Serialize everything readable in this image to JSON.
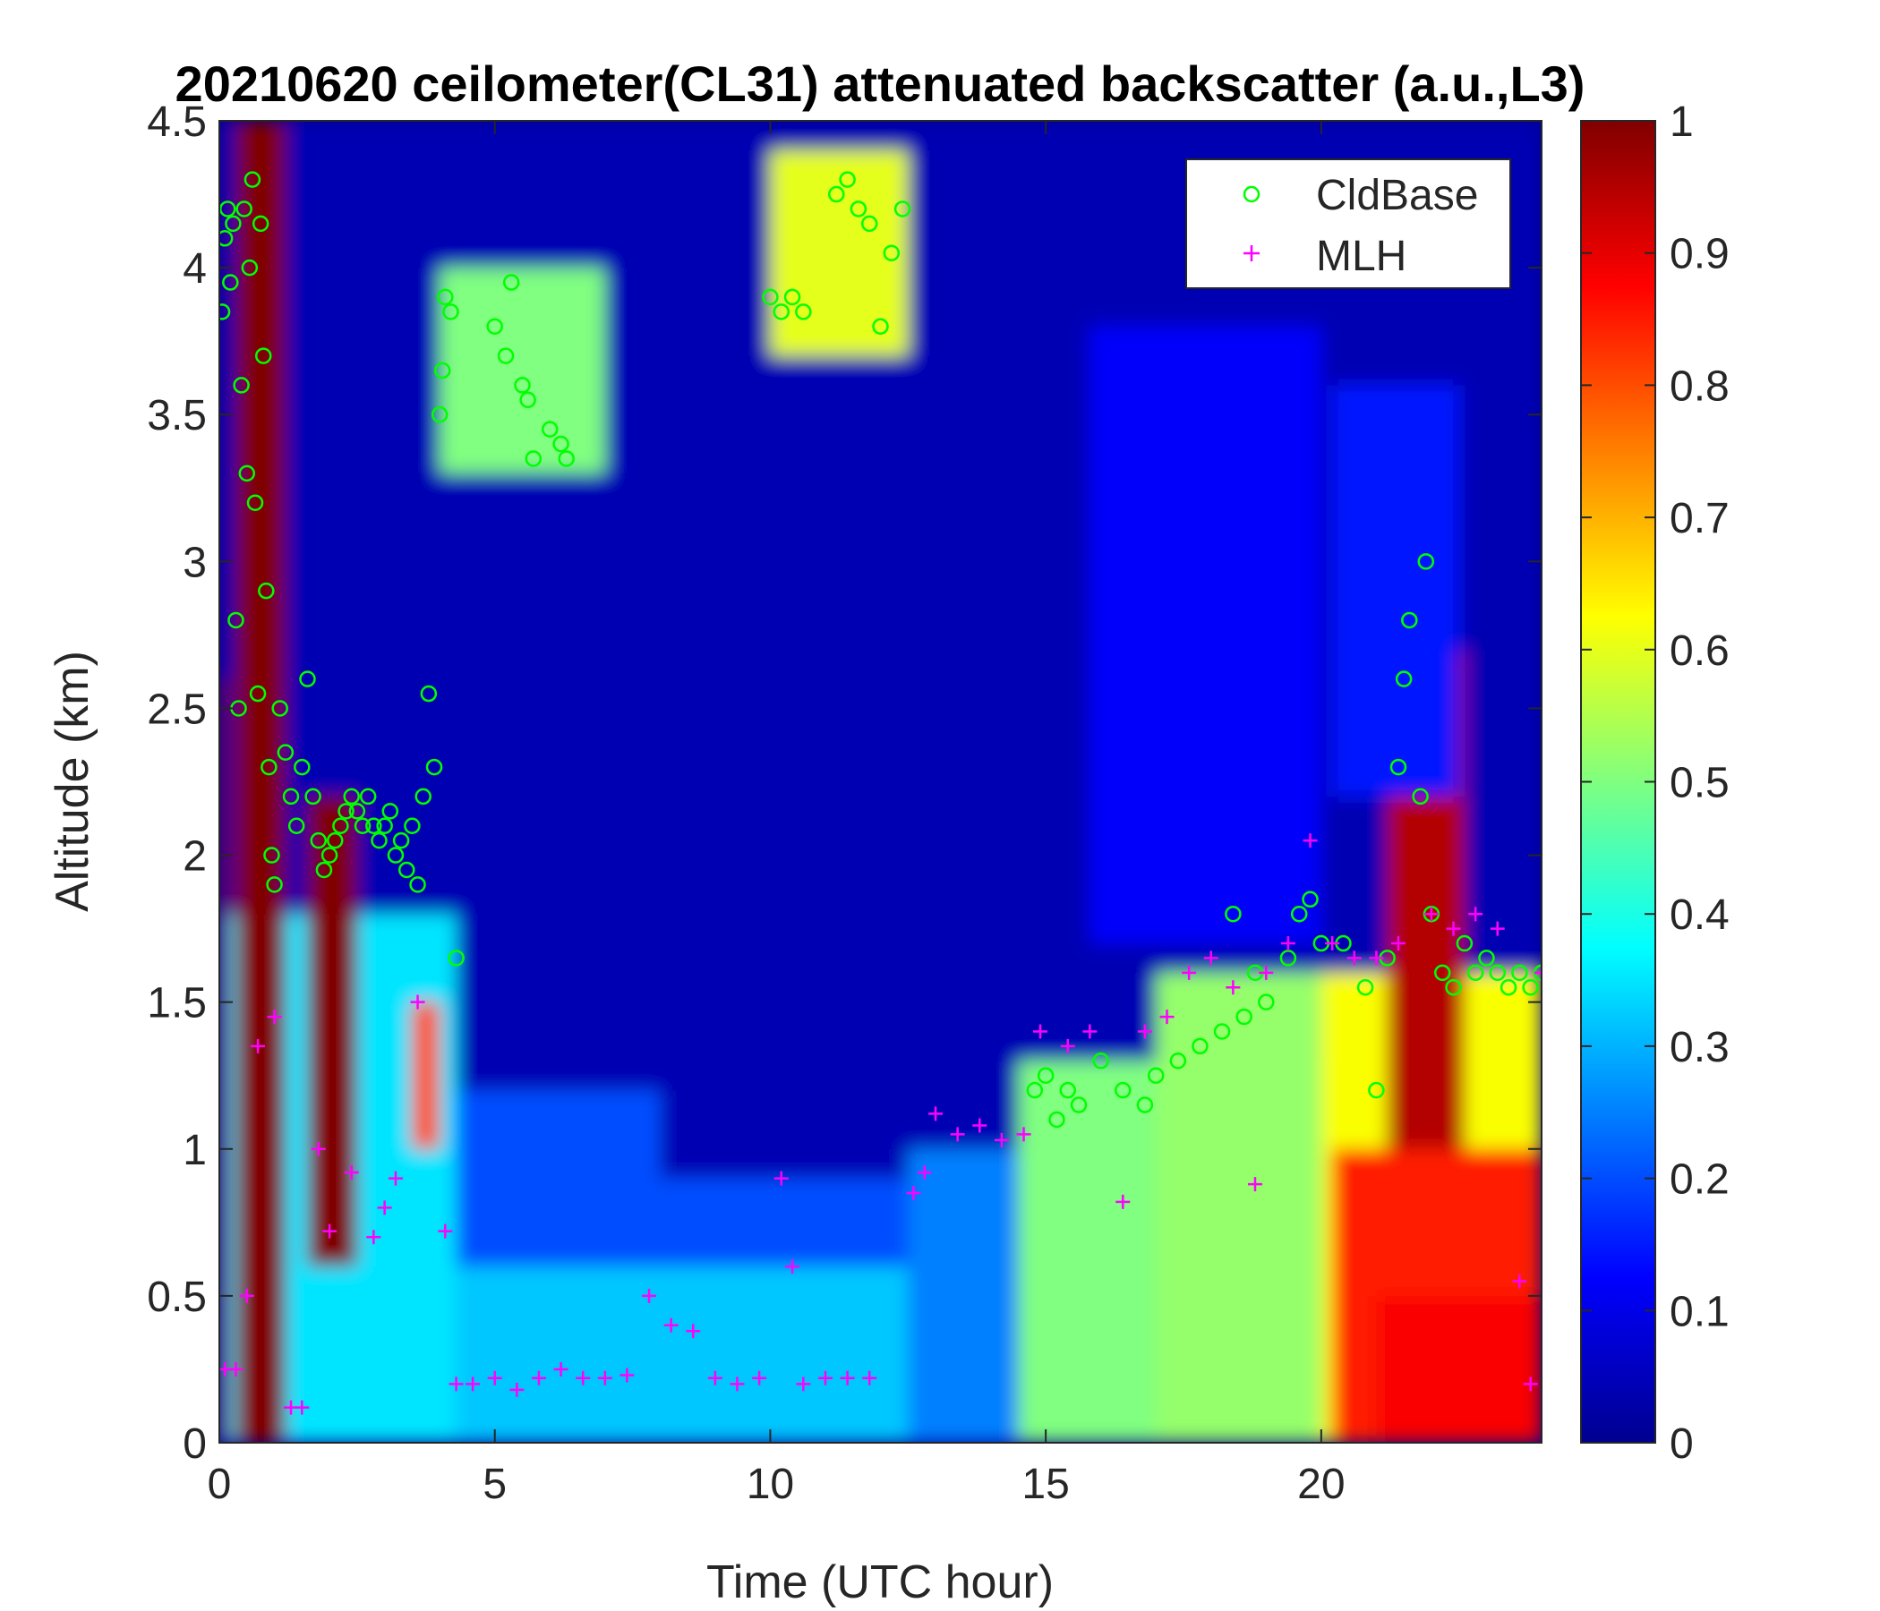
{
  "chart_data": {
    "type": "heatmap",
    "title": "20210620 ceilometer(CL31) attenuated backscatter (a.u.,L3)",
    "xlabel": "Time (UTC hour)",
    "ylabel": "Altitude (km)",
    "xlim": [
      0,
      24
    ],
    "ylim": [
      0,
      4.5
    ],
    "xticks": [
      0,
      5,
      10,
      15,
      20
    ],
    "yticks": [
      0,
      0.5,
      1,
      1.5,
      2,
      2.5,
      3,
      3.5,
      4,
      4.5
    ],
    "colorbar": {
      "range": [
        0,
        1
      ],
      "ticks": [
        0,
        0.1,
        0.2,
        0.3,
        0.4,
        0.5,
        0.6,
        0.7,
        0.8,
        0.9,
        1
      ],
      "colormap": "jet"
    },
    "legend": {
      "position": "top-right",
      "entries": [
        {
          "name": "CldBase",
          "marker": "circle",
          "color": "#00ff00"
        },
        {
          "name": "MLH",
          "marker": "plus",
          "color": "#ff00ff"
        }
      ]
    },
    "backscatter_regions": [
      {
        "x0": 0,
        "x1": 24,
        "y0": 0,
        "y1": 4.5,
        "value": 0.04
      },
      {
        "x0": 0,
        "x1": 4.3,
        "y0": 0,
        "y1": 1.8,
        "value": 0.35
      },
      {
        "x0": 4.3,
        "x1": 8,
        "y0": 0,
        "y1": 1.2,
        "value": 0.2
      },
      {
        "x0": 8,
        "x1": 12.5,
        "y0": 0,
        "y1": 0.9,
        "value": 0.2
      },
      {
        "x0": 12.5,
        "x1": 14.5,
        "y0": 0,
        "y1": 1.0,
        "value": 0.25
      },
      {
        "x0": 4.3,
        "x1": 12.5,
        "y0": 0,
        "y1": 0.6,
        "value": 0.32
      },
      {
        "x0": 14.5,
        "x1": 20,
        "y0": 0,
        "y1": 1.3,
        "value": 0.5
      },
      {
        "x0": 17,
        "x1": 20,
        "y0": 0,
        "y1": 1.6,
        "value": 0.52
      },
      {
        "x0": 20,
        "x1": 24,
        "y0": 0,
        "y1": 1.6,
        "value": 0.62
      },
      {
        "x0": 20.2,
        "x1": 24,
        "y0": 0,
        "y1": 1.0,
        "value": 0.85
      },
      {
        "x0": 21,
        "x1": 24,
        "y0": 0,
        "y1": 0.5,
        "value": 0.88
      },
      {
        "x0": 0,
        "x1": 0.15,
        "y0": 0,
        "y1": 2.6,
        "value": 1.0
      },
      {
        "x0": 0.3,
        "x1": 1.2,
        "y0": 0,
        "y1": 4.5,
        "value": 1.0
      },
      {
        "x0": 1.6,
        "x1": 2.5,
        "y0": 0.6,
        "y1": 2.2,
        "value": 1.0
      },
      {
        "x0": 3.5,
        "x1": 4.0,
        "y0": 1.0,
        "y1": 1.5,
        "value": 0.8
      },
      {
        "x0": 21.2,
        "x1": 22.6,
        "y0": 1.0,
        "y1": 2.7,
        "value": 0.95
      },
      {
        "x0": 15.8,
        "x1": 20,
        "y0": 1.7,
        "y1": 3.8,
        "value": 0.12
      },
      {
        "x0": 20.2,
        "x1": 22.5,
        "y0": 2.2,
        "y1": 3.6,
        "value": 0.15
      },
      {
        "x0": 10,
        "x1": 12.5,
        "y0": 3.7,
        "y1": 4.4,
        "value": 0.6
      },
      {
        "x0": 4,
        "x1": 7,
        "y0": 3.3,
        "y1": 4.0,
        "value": 0.5
      }
    ],
    "CldBase": [
      [
        0.05,
        3.85
      ],
      [
        0.1,
        4.1
      ],
      [
        0.15,
        4.2
      ],
      [
        0.2,
        3.95
      ],
      [
        0.25,
        4.15
      ],
      [
        0.3,
        2.8
      ],
      [
        0.35,
        2.5
      ],
      [
        0.4,
        3.6
      ],
      [
        0.45,
        4.2
      ],
      [
        0.5,
        3.3
      ],
      [
        0.55,
        4.0
      ],
      [
        0.6,
        4.3
      ],
      [
        0.65,
        3.2
      ],
      [
        0.7,
        2.55
      ],
      [
        0.75,
        4.15
      ],
      [
        0.8,
        3.7
      ],
      [
        0.85,
        2.9
      ],
      [
        0.9,
        2.3
      ],
      [
        0.95,
        2.0
      ],
      [
        1.0,
        1.9
      ],
      [
        1.1,
        2.5
      ],
      [
        1.2,
        2.35
      ],
      [
        1.3,
        2.2
      ],
      [
        1.4,
        2.1
      ],
      [
        1.5,
        2.3
      ],
      [
        1.6,
        2.6
      ],
      [
        1.7,
        2.2
      ],
      [
        1.8,
        2.05
      ],
      [
        1.9,
        1.95
      ],
      [
        2.0,
        2.0
      ],
      [
        2.1,
        2.05
      ],
      [
        2.2,
        2.1
      ],
      [
        2.3,
        2.15
      ],
      [
        2.4,
        2.2
      ],
      [
        2.5,
        2.15
      ],
      [
        2.6,
        2.1
      ],
      [
        2.7,
        2.2
      ],
      [
        2.8,
        2.1
      ],
      [
        2.9,
        2.05
      ],
      [
        3.0,
        2.1
      ],
      [
        3.1,
        2.15
      ],
      [
        3.2,
        2.0
      ],
      [
        3.3,
        2.05
      ],
      [
        3.4,
        1.95
      ],
      [
        3.5,
        2.1
      ],
      [
        3.6,
        1.9
      ],
      [
        3.7,
        2.2
      ],
      [
        3.8,
        2.55
      ],
      [
        3.9,
        2.3
      ],
      [
        4.0,
        3.5
      ],
      [
        4.05,
        3.65
      ],
      [
        4.1,
        3.9
      ],
      [
        4.2,
        3.85
      ],
      [
        4.3,
        1.65
      ],
      [
        5.0,
        3.8
      ],
      [
        5.2,
        3.7
      ],
      [
        5.3,
        3.95
      ],
      [
        5.5,
        3.6
      ],
      [
        5.6,
        3.55
      ],
      [
        5.7,
        3.35
      ],
      [
        6.0,
        3.45
      ],
      [
        6.2,
        3.4
      ],
      [
        6.3,
        3.35
      ],
      [
        10.0,
        3.9
      ],
      [
        10.2,
        3.85
      ],
      [
        10.4,
        3.9
      ],
      [
        10.6,
        3.85
      ],
      [
        11.2,
        4.25
      ],
      [
        11.4,
        4.3
      ],
      [
        11.6,
        4.2
      ],
      [
        11.8,
        4.15
      ],
      [
        12.0,
        3.8
      ],
      [
        12.2,
        4.05
      ],
      [
        12.4,
        4.2
      ],
      [
        14.8,
        1.2
      ],
      [
        15.0,
        1.25
      ],
      [
        15.2,
        1.1
      ],
      [
        15.4,
        1.2
      ],
      [
        15.6,
        1.15
      ],
      [
        16.0,
        1.3
      ],
      [
        16.4,
        1.2
      ],
      [
        16.8,
        1.15
      ],
      [
        17.0,
        1.25
      ],
      [
        17.4,
        1.3
      ],
      [
        17.8,
        1.35
      ],
      [
        18.2,
        1.4
      ],
      [
        18.4,
        1.8
      ],
      [
        18.6,
        1.45
      ],
      [
        18.8,
        1.6
      ],
      [
        19.0,
        1.5
      ],
      [
        19.4,
        1.65
      ],
      [
        19.6,
        1.8
      ],
      [
        19.8,
        1.85
      ],
      [
        20.0,
        1.7
      ],
      [
        20.4,
        1.7
      ],
      [
        20.8,
        1.55
      ],
      [
        21.0,
        1.2
      ],
      [
        21.2,
        1.65
      ],
      [
        21.4,
        2.3
      ],
      [
        21.5,
        2.6
      ],
      [
        21.6,
        2.8
      ],
      [
        21.8,
        2.2
      ],
      [
        21.9,
        3.0
      ],
      [
        22.0,
        1.8
      ],
      [
        22.2,
        1.6
      ],
      [
        22.4,
        1.55
      ],
      [
        22.6,
        1.7
      ],
      [
        22.8,
        1.6
      ],
      [
        23.0,
        1.65
      ],
      [
        23.2,
        1.6
      ],
      [
        23.4,
        1.55
      ],
      [
        23.6,
        1.6
      ],
      [
        23.8,
        1.55
      ],
      [
        24.0,
        1.6
      ]
    ],
    "MLH": [
      [
        0.1,
        0.25
      ],
      [
        0.3,
        0.25
      ],
      [
        0.5,
        0.5
      ],
      [
        0.7,
        1.35
      ],
      [
        1.0,
        1.45
      ],
      [
        1.3,
        0.12
      ],
      [
        1.5,
        0.12
      ],
      [
        1.8,
        1.0
      ],
      [
        2.0,
        0.72
      ],
      [
        2.4,
        0.92
      ],
      [
        2.8,
        0.7
      ],
      [
        3.0,
        0.8
      ],
      [
        3.2,
        0.9
      ],
      [
        3.6,
        1.5
      ],
      [
        4.1,
        0.72
      ],
      [
        4.3,
        0.2
      ],
      [
        4.6,
        0.2
      ],
      [
        5.0,
        0.22
      ],
      [
        5.4,
        0.18
      ],
      [
        5.8,
        0.22
      ],
      [
        6.2,
        0.25
      ],
      [
        6.6,
        0.22
      ],
      [
        7.0,
        0.22
      ],
      [
        7.4,
        0.23
      ],
      [
        7.8,
        0.5
      ],
      [
        8.2,
        0.4
      ],
      [
        8.6,
        0.38
      ],
      [
        9.0,
        0.22
      ],
      [
        9.4,
        0.2
      ],
      [
        9.8,
        0.22
      ],
      [
        10.2,
        0.9
      ],
      [
        10.4,
        0.6
      ],
      [
        10.6,
        0.2
      ],
      [
        11.0,
        0.22
      ],
      [
        11.4,
        0.22
      ],
      [
        11.8,
        0.22
      ],
      [
        12.6,
        0.85
      ],
      [
        12.8,
        0.92
      ],
      [
        13.0,
        1.12
      ],
      [
        13.4,
        1.05
      ],
      [
        13.8,
        1.08
      ],
      [
        14.2,
        1.03
      ],
      [
        14.6,
        1.05
      ],
      [
        14.9,
        1.4
      ],
      [
        15.4,
        1.35
      ],
      [
        15.8,
        1.4
      ],
      [
        16.4,
        0.82
      ],
      [
        16.8,
        1.4
      ],
      [
        17.2,
        1.45
      ],
      [
        17.6,
        1.6
      ],
      [
        18.0,
        1.65
      ],
      [
        18.4,
        1.55
      ],
      [
        18.8,
        0.88
      ],
      [
        19.0,
        1.6
      ],
      [
        19.4,
        1.7
      ],
      [
        19.8,
        2.05
      ],
      [
        20.2,
        1.7
      ],
      [
        20.6,
        1.65
      ],
      [
        21.0,
        1.65
      ],
      [
        21.4,
        1.7
      ],
      [
        22.0,
        1.8
      ],
      [
        22.4,
        1.75
      ],
      [
        22.8,
        1.8
      ],
      [
        23.2,
        1.75
      ],
      [
        23.6,
        0.55
      ],
      [
        23.8,
        0.2
      ],
      [
        24.0,
        1.6
      ]
    ]
  }
}
